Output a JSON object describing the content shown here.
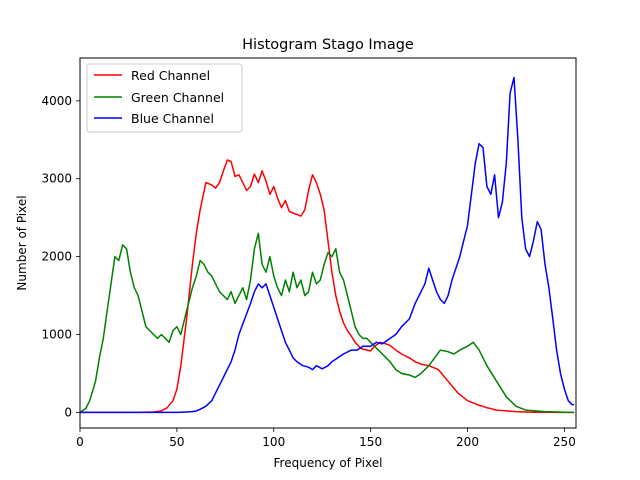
{
  "chart_data": {
    "type": "line",
    "title": "Histogram Stago Image",
    "xlabel": "Frequency of Pixel",
    "ylabel": "Number of Pixel",
    "xlim": [
      0,
      256
    ],
    "ylim": [
      -200,
      4550
    ],
    "x_ticks": [
      0,
      50,
      100,
      150,
      200,
      250
    ],
    "y_ticks": [
      0,
      1000,
      2000,
      3000,
      4000
    ],
    "grid": false,
    "legend_position": "top-left",
    "series": [
      {
        "name": "Red Channel",
        "color": "#ff0000",
        "x": [
          0,
          10,
          20,
          30,
          38,
          42,
          45,
          48,
          50,
          52,
          55,
          58,
          60,
          62,
          65,
          68,
          70,
          72,
          74,
          76,
          78,
          80,
          82,
          84,
          86,
          88,
          90,
          92,
          94,
          96,
          98,
          100,
          102,
          104,
          106,
          108,
          110,
          112,
          114,
          116,
          118,
          120,
          122,
          124,
          126,
          128,
          130,
          132,
          134,
          136,
          138,
          140,
          142,
          145,
          148,
          150,
          152,
          155,
          158,
          160,
          163,
          166,
          170,
          173,
          176,
          180,
          185,
          190,
          195,
          200,
          205,
          210,
          215,
          220,
          225,
          230,
          235,
          240,
          245,
          250,
          255
        ],
        "y": [
          0,
          0,
          0,
          0,
          5,
          20,
          60,
          150,
          300,
          600,
          1200,
          1900,
          2300,
          2600,
          2950,
          2920,
          2880,
          2950,
          3100,
          3240,
          3220,
          3030,
          3050,
          2950,
          2850,
          2900,
          3060,
          2950,
          3100,
          2970,
          2800,
          2900,
          2750,
          2630,
          2720,
          2580,
          2560,
          2540,
          2520,
          2600,
          2850,
          3050,
          2950,
          2800,
          2600,
          2200,
          1800,
          1500,
          1300,
          1150,
          1050,
          980,
          900,
          820,
          800,
          790,
          850,
          900,
          880,
          860,
          800,
          750,
          700,
          650,
          620,
          600,
          550,
          400,
          250,
          150,
          100,
          60,
          30,
          20,
          10,
          5,
          2,
          1,
          0,
          0,
          0
        ]
      },
      {
        "name": "Green Channel",
        "color": "#008000",
        "x": [
          0,
          3,
          5,
          8,
          10,
          12,
          14,
          16,
          18,
          20,
          22,
          24,
          26,
          28,
          30,
          32,
          34,
          36,
          38,
          40,
          42,
          44,
          46,
          48,
          50,
          52,
          54,
          56,
          58,
          60,
          62,
          64,
          66,
          68,
          70,
          72,
          74,
          76,
          78,
          80,
          82,
          84,
          86,
          88,
          90,
          92,
          94,
          96,
          98,
          100,
          102,
          104,
          106,
          108,
          110,
          112,
          114,
          116,
          118,
          120,
          122,
          124,
          126,
          128,
          130,
          132,
          134,
          136,
          138,
          140,
          142,
          144,
          146,
          148,
          150,
          152,
          154,
          156,
          158,
          160,
          163,
          166,
          170,
          173,
          176,
          180,
          183,
          186,
          190,
          193,
          196,
          200,
          203,
          206,
          210,
          215,
          220,
          225,
          230,
          240,
          250,
          255
        ],
        "y": [
          0,
          50,
          150,
          400,
          700,
          950,
          1300,
          1650,
          2000,
          1950,
          2150,
          2100,
          1800,
          1600,
          1500,
          1300,
          1100,
          1050,
          1000,
          950,
          1000,
          950,
          900,
          1050,
          1100,
          1000,
          1200,
          1400,
          1600,
          1750,
          1950,
          1900,
          1800,
          1750,
          1650,
          1550,
          1500,
          1450,
          1550,
          1400,
          1500,
          1600,
          1450,
          1700,
          2100,
          2300,
          1900,
          1800,
          2000,
          1750,
          1600,
          1500,
          1700,
          1550,
          1800,
          1600,
          1700,
          1500,
          1550,
          1800,
          1650,
          1700,
          1900,
          2050,
          2000,
          2100,
          1800,
          1700,
          1500,
          1300,
          1100,
          1000,
          950,
          950,
          900,
          850,
          800,
          750,
          700,
          650,
          550,
          500,
          480,
          450,
          500,
          600,
          700,
          800,
          780,
          750,
          800,
          850,
          900,
          800,
          600,
          400,
          200,
          80,
          30,
          10,
          2,
          0
        ],
        "note_legend": "Green Channel"
      },
      {
        "name": "Blue Channel",
        "color": "#0000ff",
        "x": [
          0,
          10,
          20,
          30,
          40,
          50,
          55,
          58,
          60,
          62,
          65,
          68,
          70,
          72,
          75,
          78,
          80,
          82,
          85,
          88,
          90,
          92,
          94,
          96,
          98,
          100,
          102,
          104,
          106,
          108,
          110,
          112,
          115,
          118,
          120,
          122,
          125,
          128,
          130,
          133,
          136,
          140,
          143,
          146,
          150,
          153,
          156,
          160,
          163,
          166,
          170,
          173,
          176,
          178,
          180,
          182,
          184,
          186,
          188,
          190,
          192,
          194,
          196,
          198,
          200,
          202,
          204,
          206,
          208,
          210,
          212,
          214,
          216,
          218,
          220,
          222,
          224,
          226,
          228,
          230,
          232,
          234,
          236,
          238,
          240,
          242,
          244,
          246,
          248,
          250,
          252,
          254,
          255
        ],
        "y": [
          0,
          0,
          0,
          0,
          0,
          0,
          5,
          10,
          20,
          40,
          80,
          150,
          250,
          350,
          500,
          650,
          800,
          1000,
          1200,
          1400,
          1550,
          1650,
          1600,
          1650,
          1500,
          1350,
          1200,
          1050,
          900,
          800,
          700,
          650,
          600,
          580,
          550,
          600,
          560,
          600,
          650,
          700,
          750,
          800,
          800,
          850,
          850,
          900,
          880,
          950,
          1000,
          1100,
          1200,
          1400,
          1550,
          1650,
          1850,
          1700,
          1550,
          1450,
          1400,
          1500,
          1700,
          1850,
          2000,
          2200,
          2400,
          2800,
          3200,
          3450,
          3400,
          2900,
          2800,
          3050,
          2500,
          2700,
          3200,
          4100,
          4300,
          3500,
          2500,
          2100,
          2000,
          2200,
          2450,
          2350,
          1900,
          1600,
          1200,
          800,
          500,
          300,
          150,
          100,
          100
        ]
      }
    ]
  }
}
